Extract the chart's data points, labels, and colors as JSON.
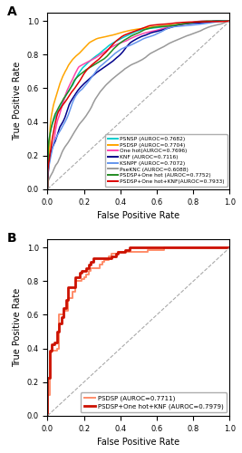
{
  "panel_a": {
    "xlabel": "False Positive Rate",
    "ylabel": "True Positive Rate",
    "curves": [
      {
        "label": "PSNSP (AUROC=0.7682)",
        "color": "#00CCCC",
        "auroc": 0.7682,
        "seed": 42
      },
      {
        "label": "PSDSP (AUROC=0.7704)",
        "color": "#FFA500",
        "auroc": 0.7704,
        "seed": 43
      },
      {
        "label": "One hot(AUROC=0.7696)",
        "color": "#FF44AA",
        "auroc": 0.7696,
        "seed": 44
      },
      {
        "label": "KNF (AUROC=0.7116)",
        "color": "#00008B",
        "auroc": 0.7116,
        "seed": 45
      },
      {
        "label": "KSNPF (AUROC=0.7072)",
        "color": "#6495ED",
        "auroc": 0.7072,
        "seed": 46
      },
      {
        "label": "PseKNC (AUROC=0.6088)",
        "color": "#999999",
        "auroc": 0.6088,
        "seed": 47
      },
      {
        "label": "PSDSP+One hot (AUROC=0.7752)",
        "color": "#228B22",
        "auroc": 0.7752,
        "seed": 48
      },
      {
        "label": "PSDSP+One hot+KNF(AUROC=0.7933)",
        "color": "#DD0000",
        "auroc": 0.7933,
        "seed": 49
      }
    ]
  },
  "panel_b": {
    "xlabel": "False Positive Rate",
    "ylabel": "True Positive Rate",
    "curves": [
      {
        "label": "PSDSP (AUROC=0.7711)",
        "color": "#FF8C69",
        "auroc": 0.7711,
        "seed": 100,
        "lw": 1.4
      },
      {
        "label": "PSDSP+One hot+KNF (AUROC=0.7979)",
        "color": "#CC1100",
        "auroc": 0.7979,
        "seed": 101,
        "lw": 2.0
      }
    ]
  }
}
